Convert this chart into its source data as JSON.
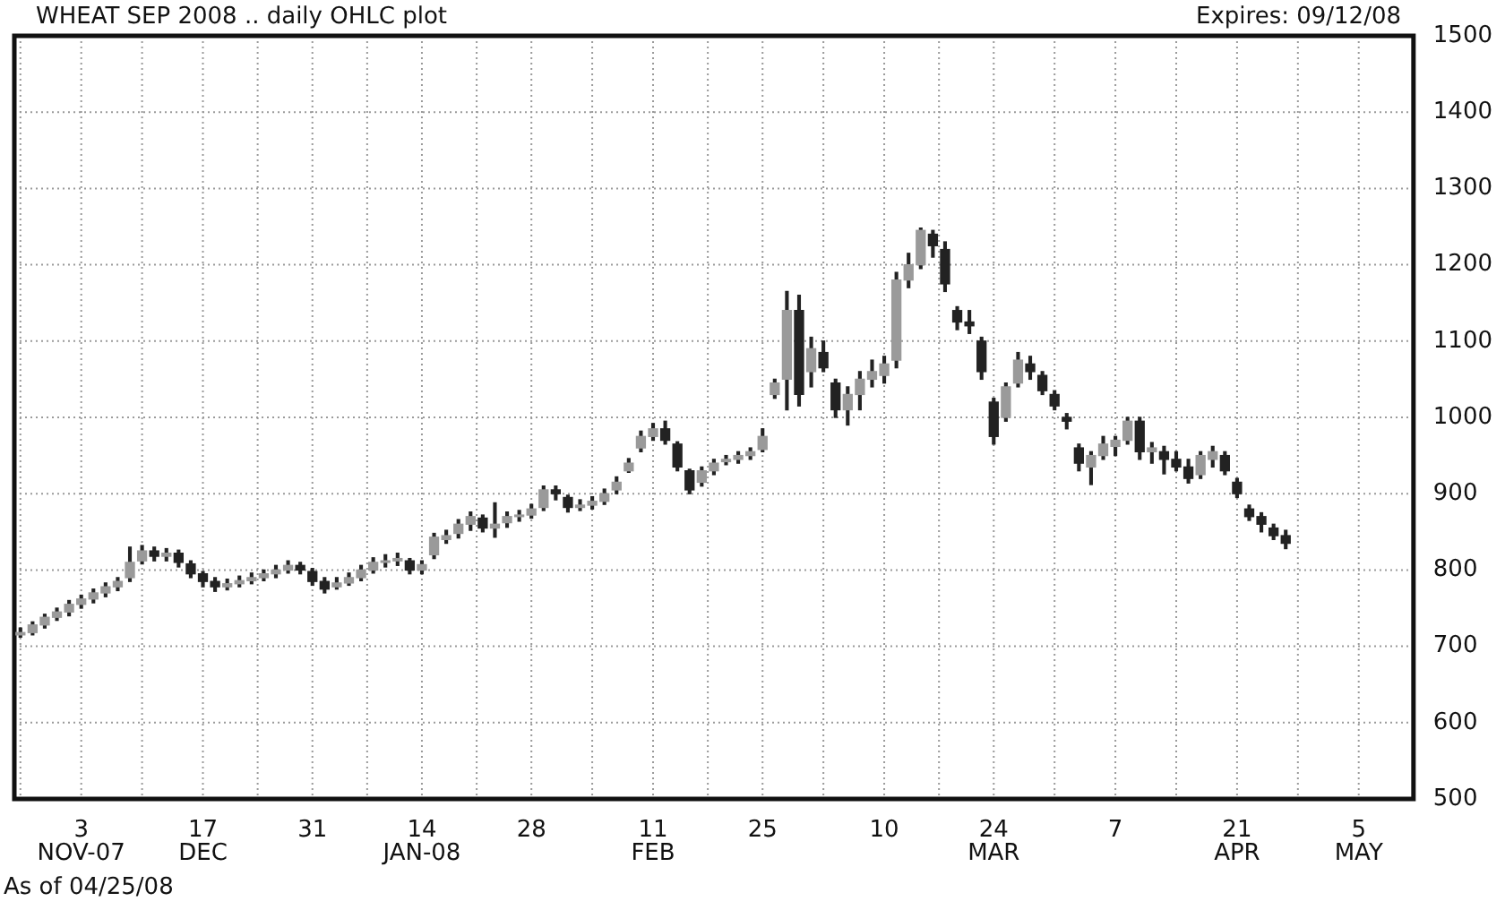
{
  "chart_data": {
    "type": "candlestick",
    "title": "WHEAT SEP 2008 .. daily OHLC plot",
    "subtitle": "Expires: 09/12/08",
    "annotations": [
      "As of 04/25/08"
    ],
    "categories": [
      null,
      null,
      null,
      null,
      null,
      "3\nNOV-07",
      null,
      null,
      null,
      null,
      null,
      null,
      null,
      null,
      null,
      "17\nDEC",
      null,
      null,
      null,
      null,
      null,
      null,
      null,
      null,
      "31",
      null,
      null,
      null,
      null,
      null,
      null,
      null,
      null,
      "14\nJAN-08",
      null,
      null,
      null,
      null,
      null,
      null,
      null,
      null,
      "28",
      null,
      null,
      null,
      null,
      null,
      null,
      null,
      null,
      null,
      "11\nFEB",
      null,
      null,
      null,
      null,
      null,
      null,
      null,
      null,
      "25",
      null,
      null,
      null,
      null,
      null,
      null,
      null,
      null,
      null,
      "10",
      null,
      null,
      null,
      null,
      null,
      null,
      null,
      null,
      "24\nMAR",
      null,
      null,
      null,
      null,
      null,
      null,
      null,
      null,
      null,
      "7",
      null,
      null,
      null,
      null,
      null,
      null,
      null,
      null,
      null,
      "21\nAPR",
      null,
      null,
      null,
      null,
      null,
      null,
      null,
      null,
      null,
      "5\nMAY",
      null,
      null,
      null,
      null
    ],
    "ohlc": [
      [
        715,
        724,
        712,
        718
      ],
      [
        718,
        732,
        715,
        728
      ],
      [
        728,
        742,
        724,
        738
      ],
      [
        738,
        750,
        734,
        745
      ],
      [
        745,
        760,
        740,
        755
      ],
      [
        755,
        767,
        750,
        762
      ],
      [
        762,
        775,
        757,
        770
      ],
      [
        770,
        783,
        765,
        778
      ],
      [
        778,
        790,
        773,
        785
      ],
      [
        790,
        830,
        785,
        810
      ],
      [
        812,
        832,
        808,
        825
      ],
      [
        825,
        830,
        812,
        818
      ],
      [
        818,
        828,
        812,
        822
      ],
      [
        822,
        826,
        804,
        810
      ],
      [
        808,
        812,
        790,
        795
      ],
      [
        795,
        798,
        778,
        785
      ],
      [
        785,
        790,
        772,
        778
      ],
      [
        778,
        788,
        774,
        782
      ],
      [
        782,
        792,
        778,
        786
      ],
      [
        786,
        796,
        782,
        790
      ],
      [
        790,
        800,
        786,
        795
      ],
      [
        795,
        806,
        790,
        800
      ],
      [
        800,
        812,
        796,
        806
      ],
      [
        806,
        810,
        795,
        800
      ],
      [
        798,
        802,
        780,
        785
      ],
      [
        785,
        790,
        770,
        775
      ],
      [
        778,
        790,
        775,
        783
      ],
      [
        783,
        796,
        780,
        790
      ],
      [
        790,
        806,
        786,
        800
      ],
      [
        800,
        816,
        796,
        810
      ],
      [
        810,
        820,
        804,
        812
      ],
      [
        812,
        822,
        806,
        815
      ],
      [
        812,
        815,
        795,
        800
      ],
      [
        800,
        812,
        795,
        807
      ],
      [
        820,
        848,
        815,
        843
      ],
      [
        840,
        852,
        835,
        845
      ],
      [
        848,
        866,
        842,
        860
      ],
      [
        860,
        876,
        852,
        870
      ],
      [
        868,
        872,
        850,
        855
      ],
      [
        855,
        888,
        843,
        860
      ],
      [
        862,
        876,
        856,
        870
      ],
      [
        870,
        878,
        864,
        872
      ],
      [
        872,
        886,
        868,
        880
      ],
      [
        882,
        910,
        878,
        905
      ],
      [
        905,
        910,
        892,
        900
      ],
      [
        895,
        898,
        876,
        882
      ],
      [
        882,
        892,
        878,
        885
      ],
      [
        885,
        896,
        880,
        890
      ],
      [
        890,
        906,
        886,
        900
      ],
      [
        905,
        922,
        900,
        915
      ],
      [
        930,
        946,
        928,
        940
      ],
      [
        960,
        982,
        955,
        975
      ],
      [
        975,
        992,
        970,
        985
      ],
      [
        985,
        995,
        965,
        970
      ],
      [
        965,
        968,
        930,
        935
      ],
      [
        930,
        932,
        900,
        905
      ],
      [
        915,
        935,
        910,
        930
      ],
      [
        930,
        945,
        925,
        940
      ],
      [
        942,
        950,
        938,
        945
      ],
      [
        945,
        955,
        940,
        950
      ],
      [
        950,
        960,
        945,
        955
      ],
      [
        958,
        985,
        955,
        975
      ],
      [
        1030,
        1050,
        1025,
        1045
      ],
      [
        1050,
        1165,
        1010,
        1140
      ],
      [
        1140,
        1160,
        1015,
        1030
      ],
      [
        1060,
        1105,
        1040,
        1090
      ],
      [
        1085,
        1100,
        1060,
        1065
      ],
      [
        1045,
        1050,
        1000,
        1010
      ],
      [
        1010,
        1040,
        990,
        1030
      ],
      [
        1030,
        1060,
        1010,
        1050
      ],
      [
        1050,
        1075,
        1040,
        1060
      ],
      [
        1055,
        1080,
        1045,
        1070
      ],
      [
        1075,
        1190,
        1065,
        1180
      ],
      [
        1180,
        1215,
        1170,
        1200
      ],
      [
        1200,
        1248,
        1195,
        1245
      ],
      [
        1240,
        1245,
        1210,
        1225
      ],
      [
        1220,
        1230,
        1165,
        1175
      ],
      [
        1140,
        1145,
        1115,
        1125
      ],
      [
        1125,
        1140,
        1110,
        1120
      ],
      [
        1100,
        1105,
        1050,
        1060
      ],
      [
        1020,
        1025,
        965,
        975
      ],
      [
        1000,
        1045,
        995,
        1040
      ],
      [
        1045,
        1085,
        1040,
        1075
      ],
      [
        1070,
        1080,
        1050,
        1060
      ],
      [
        1055,
        1060,
        1030,
        1035
      ],
      [
        1030,
        1035,
        1010,
        1015
      ],
      [
        1000,
        1005,
        985,
        995
      ],
      [
        960,
        965,
        930,
        940
      ],
      [
        935,
        955,
        912,
        950
      ],
      [
        950,
        975,
        945,
        965
      ],
      [
        962,
        975,
        950,
        970
      ],
      [
        970,
        1000,
        965,
        995
      ],
      [
        995,
        1000,
        945,
        955
      ],
      [
        955,
        967,
        940,
        960
      ],
      [
        955,
        962,
        926,
        945
      ],
      [
        945,
        955,
        930,
        935
      ],
      [
        935,
        945,
        914,
        920
      ],
      [
        925,
        955,
        920,
        950
      ],
      [
        945,
        962,
        935,
        955
      ],
      [
        950,
        955,
        925,
        930
      ],
      [
        915,
        920,
        895,
        900
      ],
      [
        880,
        885,
        865,
        870
      ],
      [
        870,
        875,
        850,
        860
      ],
      [
        855,
        860,
        840,
        845
      ],
      [
        845,
        852,
        828,
        835
      ],
      null,
      null,
      null,
      null,
      null,
      null,
      null,
      null,
      null,
      null
    ],
    "ylim": [
      500,
      1500
    ],
    "yticks": [
      500,
      600,
      700,
      800,
      900,
      1000,
      1100,
      1200,
      1300,
      1400,
      1500
    ],
    "grid": true,
    "legend": false
  }
}
